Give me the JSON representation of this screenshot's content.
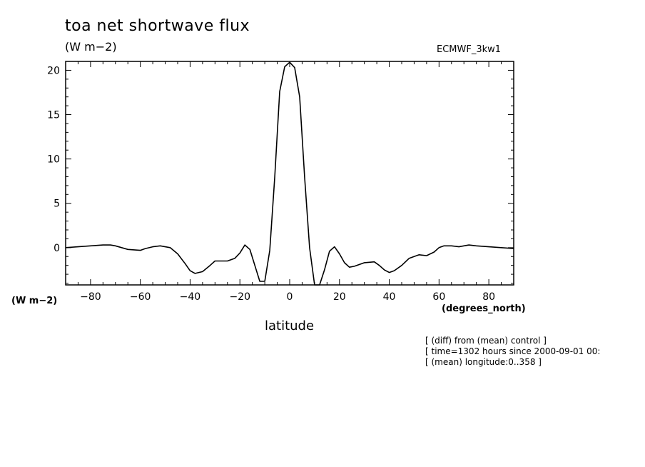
{
  "title": "toa net shortwave flux",
  "units_top": "(W m−2)",
  "dataset_label": "ECMWF_3kw1",
  "units_left": "(W m−2)",
  "notes": [
    "[ (diff) from (mean) control ]",
    "[ time=1302 hours since 2000-09-01 00:",
    "[ (mean) longitude:0..358 ]"
  ],
  "chart_data": {
    "type": "line",
    "title": "toa net shortwave flux",
    "xlabel": "latitude",
    "xunits": "(degrees_north)",
    "ylabel": "(W m−2)",
    "xlim": [
      -90,
      90
    ],
    "ylim": [
      -4.2,
      21
    ],
    "x_ticks": [
      -80,
      -60,
      -40,
      -20,
      0,
      20,
      40,
      60,
      80
    ],
    "x_tick_labels": [
      "−80",
      "−60",
      "−40",
      "−20",
      "0",
      "20",
      "40",
      "60",
      "80"
    ],
    "y_ticks": [
      0,
      5,
      10,
      15,
      20
    ],
    "y_tick_labels": [
      "0",
      "5",
      "10",
      "15",
      "20"
    ],
    "grid": false,
    "line_color": "#000000",
    "x": [
      -90,
      -85,
      -80,
      -75,
      -72,
      -70,
      -65,
      -60,
      -58,
      -55,
      -52,
      -48,
      -45,
      -42,
      -40,
      -38,
      -35,
      -32,
      -30,
      -25,
      -22,
      -20,
      -18,
      -16,
      -12,
      -10,
      -8,
      -6,
      -4,
      -2,
      0,
      2,
      4,
      6,
      8,
      10,
      12,
      14,
      16,
      18,
      20,
      22,
      24,
      26,
      30,
      34,
      36,
      38,
      40,
      42,
      45,
      48,
      50,
      52,
      55,
      58,
      60,
      62,
      65,
      68,
      72,
      75,
      80,
      85,
      90
    ],
    "y": [
      0.0,
      0.1,
      0.2,
      0.3,
      0.3,
      0.2,
      -0.2,
      -0.3,
      -0.1,
      0.1,
      0.2,
      0.0,
      -0.7,
      -1.8,
      -2.6,
      -2.9,
      -2.7,
      -2.0,
      -1.5,
      -1.5,
      -1.2,
      -0.6,
      0.3,
      -0.2,
      -3.8,
      -3.8,
      -0.3,
      8.0,
      17.6,
      20.4,
      20.9,
      20.3,
      17.0,
      8.0,
      0.0,
      -4.2,
      -4.2,
      -2.5,
      -0.4,
      0.1,
      -0.7,
      -1.7,
      -2.2,
      -2.1,
      -1.7,
      -1.6,
      -2.0,
      -2.5,
      -2.8,
      -2.6,
      -2.0,
      -1.2,
      -1.0,
      -0.8,
      -0.9,
      -0.5,
      0.0,
      0.2,
      0.2,
      0.1,
      0.3,
      0.2,
      0.1,
      0.0,
      -0.1
    ]
  }
}
